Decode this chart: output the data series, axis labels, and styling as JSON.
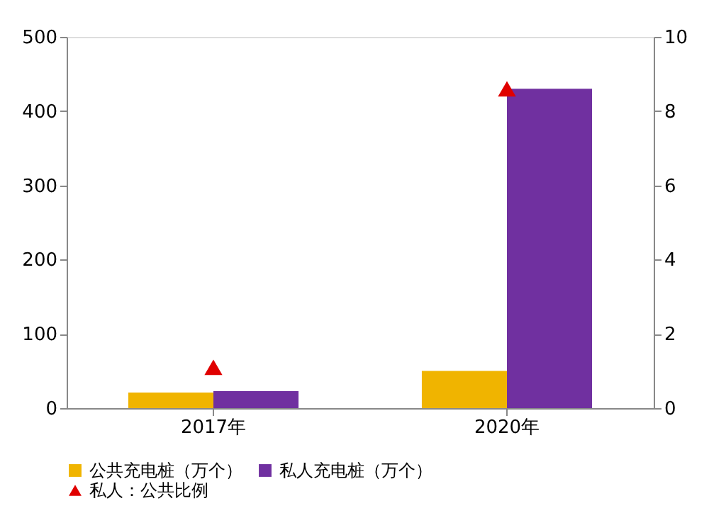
{
  "chart_data": {
    "type": "bar",
    "categories": [
      "2017年",
      "2020年"
    ],
    "series": [
      {
        "name": "公共充电桩（万个）",
        "color": "#f0b400",
        "values": [
          21,
          50
        ]
      },
      {
        "name": "私人充电桩（万个）",
        "color": "#7030a0",
        "values": [
          23,
          430
        ]
      },
      {
        "name": "私人：公共比例",
        "color": "#e00000",
        "type": "scatter",
        "marker": "triangle",
        "axis": "y2",
        "values": [
          1.1,
          8.6
        ]
      }
    ],
    "ylim": [
      0,
      500
    ],
    "yticks": [
      0,
      100,
      200,
      300,
      400,
      500
    ],
    "y2lim": [
      0,
      10
    ],
    "y2ticks": [
      0,
      2,
      4,
      6,
      8,
      10
    ],
    "grid": false,
    "legend": "bottom"
  }
}
